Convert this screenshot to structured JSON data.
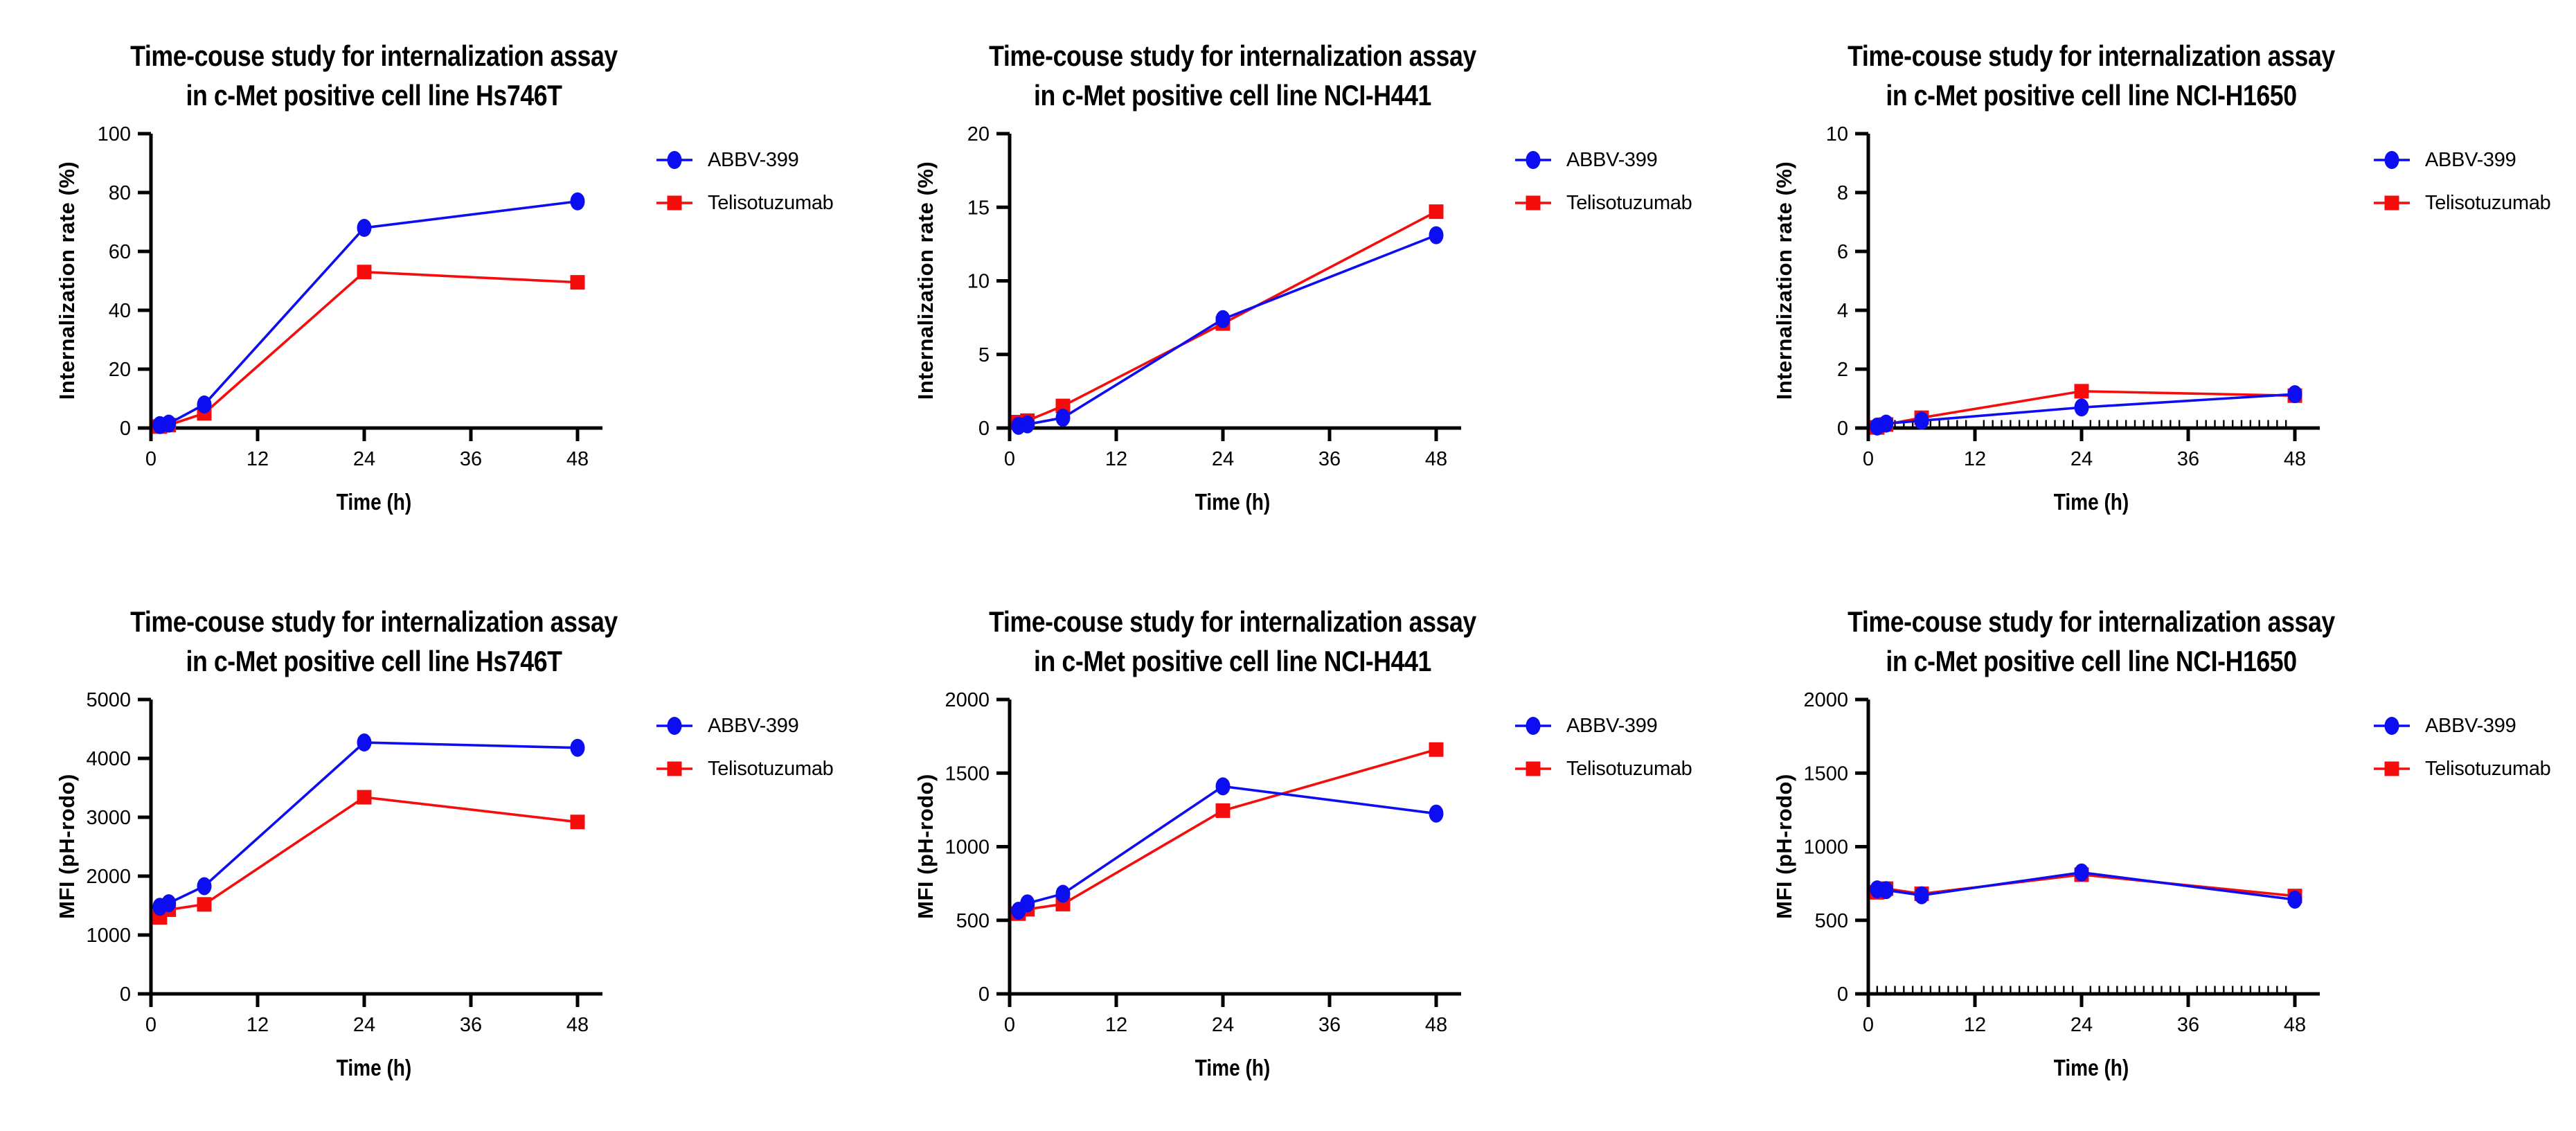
{
  "page": {
    "background": "#ffffff",
    "figure_type": "time-course line charts, 2 rows x 3 columns"
  },
  "colors": {
    "abbv_399": "#0d0df2",
    "telisotuzumab": "#f50d0d",
    "axis": "#000000",
    "text": "#000000"
  },
  "chart_data": [
    {
      "type": "line",
      "title": [
        "Time-couse study for internalization assay",
        "in c-Met positive cell line Hs746T"
      ],
      "xlabel": "Time (h)",
      "ylabel": "Internalization rate (%)",
      "x": [
        1,
        2,
        6,
        24,
        48
      ],
      "xlim": [
        0,
        50.8
      ],
      "xticks": [
        0,
        12,
        24,
        36,
        48
      ],
      "ylim": [
        0,
        100
      ],
      "yticks": [
        0,
        20,
        40,
        60,
        80,
        100
      ],
      "x_minor_step": null,
      "grid": false,
      "legend_position": "right",
      "series": [
        {
          "name": "ABBV-399",
          "color": "#0d0df2",
          "marker": "circle",
          "values": [
            1,
            1.5,
            8,
            68,
            77
          ]
        },
        {
          "name": "Telisotuzumab",
          "color": "#f50d0d",
          "marker": "square",
          "values": [
            0.5,
            1,
            5,
            53,
            49.5
          ]
        }
      ]
    },
    {
      "type": "line",
      "title": [
        "Time-couse study for internalization assay",
        "in c-Met positive cell line NCI-H441"
      ],
      "xlabel": "Time (h)",
      "ylabel": "Internalization rate (%)",
      "x": [
        1,
        2,
        6,
        24,
        48
      ],
      "xlim": [
        0,
        50.8
      ],
      "xticks": [
        0,
        12,
        24,
        36,
        48
      ],
      "ylim": [
        0,
        20
      ],
      "yticks": [
        0,
        5,
        10,
        15,
        20
      ],
      "x_minor_step": null,
      "grid": false,
      "legend_position": "right",
      "series": [
        {
          "name": "ABBV-399",
          "color": "#0d0df2",
          "marker": "circle",
          "values": [
            0.15,
            0.25,
            0.7,
            7.4,
            13.1
          ]
        },
        {
          "name": "Telisotuzumab",
          "color": "#f50d0d",
          "marker": "square",
          "values": [
            0.4,
            0.5,
            1.5,
            7.1,
            14.7
          ]
        }
      ]
    },
    {
      "type": "line",
      "title": [
        "Time-couse study for internalization assay",
        "in c-Met positive cell line NCI-H1650"
      ],
      "xlabel": "Time (h)",
      "ylabel": "Internalization rate (%)",
      "x": [
        1,
        2,
        6,
        24,
        48
      ],
      "xlim": [
        0,
        50.8
      ],
      "xticks": [
        0,
        12,
        24,
        36,
        48
      ],
      "ylim": [
        0,
        10
      ],
      "yticks": [
        0,
        2,
        4,
        6,
        8,
        10
      ],
      "x_minor_step": 1,
      "grid": false,
      "legend_position": "right",
      "series": [
        {
          "name": "ABBV-399",
          "color": "#0d0df2",
          "marker": "circle",
          "values": [
            0.05,
            0.15,
            0.25,
            0.7,
            1.15
          ]
        },
        {
          "name": "Telisotuzumab",
          "color": "#f50d0d",
          "marker": "square",
          "values": [
            0.02,
            0.12,
            0.35,
            1.25,
            1.1
          ]
        }
      ]
    },
    {
      "type": "line",
      "title": [
        "Time-couse study for internalization assay",
        "in c-Met positive cell line Hs746T"
      ],
      "xlabel": "Time (h)",
      "ylabel": "MFI (pH-rodo)",
      "x": [
        1,
        2,
        6,
        24,
        48
      ],
      "xlim": [
        0,
        50.8
      ],
      "xticks": [
        0,
        12,
        24,
        36,
        48
      ],
      "ylim": [
        0,
        5000
      ],
      "yticks": [
        0,
        1000,
        2000,
        3000,
        4000,
        5000
      ],
      "x_minor_step": null,
      "grid": false,
      "legend_position": "right",
      "series": [
        {
          "name": "ABBV-399",
          "color": "#0d0df2",
          "marker": "circle",
          "values": [
            1480,
            1540,
            1830,
            4270,
            4180
          ]
        },
        {
          "name": "Telisotuzumab",
          "color": "#f50d0d",
          "marker": "square",
          "values": [
            1300,
            1430,
            1520,
            3340,
            2920
          ]
        }
      ]
    },
    {
      "type": "line",
      "title": [
        "Time-couse study for internalization assay",
        "in c-Met positive cell line NCI-H441"
      ],
      "xlabel": "Time (h)",
      "ylabel": "MFI (pH-rodo)",
      "x": [
        1,
        2,
        6,
        24,
        48
      ],
      "xlim": [
        0,
        50.8
      ],
      "xticks": [
        0,
        12,
        24,
        36,
        48
      ],
      "ylim": [
        0,
        2000
      ],
      "yticks": [
        0,
        500,
        1000,
        1500,
        2000
      ],
      "x_minor_step": null,
      "grid": false,
      "legend_position": "right",
      "series": [
        {
          "name": "ABBV-399",
          "color": "#0d0df2",
          "marker": "circle",
          "values": [
            565,
            615,
            680,
            1410,
            1225
          ]
        },
        {
          "name": "Telisotuzumab",
          "color": "#f50d0d",
          "marker": "square",
          "values": [
            545,
            575,
            610,
            1245,
            1660
          ]
        }
      ]
    },
    {
      "type": "line",
      "title": [
        "Time-couse study for internalization assay",
        "in c-Met positive cell line NCI-H1650"
      ],
      "xlabel": "Time (h)",
      "ylabel": "MFI (pH-rodo)",
      "x": [
        1,
        2,
        6,
        24,
        48
      ],
      "xlim": [
        0,
        50.8
      ],
      "xticks": [
        0,
        12,
        24,
        36,
        48
      ],
      "ylim": [
        0,
        2000
      ],
      "yticks": [
        0,
        500,
        1000,
        1500,
        2000
      ],
      "x_minor_step": 1,
      "grid": false,
      "legend_position": "right",
      "series": [
        {
          "name": "ABBV-399",
          "color": "#0d0df2",
          "marker": "circle",
          "values": [
            710,
            705,
            670,
            825,
            640
          ]
        },
        {
          "name": "Telisotuzumab",
          "color": "#f50d0d",
          "marker": "square",
          "values": [
            690,
            715,
            680,
            810,
            665
          ]
        }
      ]
    }
  ]
}
